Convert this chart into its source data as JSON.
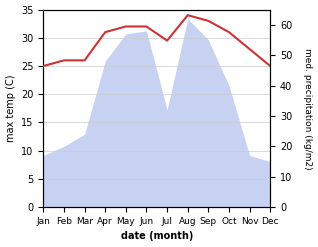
{
  "months": [
    "Jan",
    "Feb",
    "Mar",
    "Apr",
    "May",
    "Jun",
    "Jul",
    "Aug",
    "Sep",
    "Oct",
    "Nov",
    "Dec"
  ],
  "temperature": [
    25,
    26,
    26,
    31,
    32,
    32,
    29.5,
    34,
    33,
    31,
    28,
    25
  ],
  "precipitation": [
    17,
    20,
    24,
    48,
    57,
    58,
    32,
    62,
    55,
    40,
    17,
    15
  ],
  "temp_color": "#cc3333",
  "precip_color": "#aabbee",
  "precip_fill_alpha": 0.65,
  "temp_ylim": [
    0,
    35
  ],
  "precip_ylim": [
    0,
    65
  ],
  "temp_yticks": [
    0,
    5,
    10,
    15,
    20,
    25,
    30,
    35
  ],
  "precip_yticks": [
    0,
    10,
    20,
    30,
    40,
    50,
    60
  ],
  "xlabel": "date (month)",
  "ylabel_left": "max temp (C)",
  "ylabel_right": "med. precipitation (kg/m2)",
  "bg_color": "#ffffff"
}
